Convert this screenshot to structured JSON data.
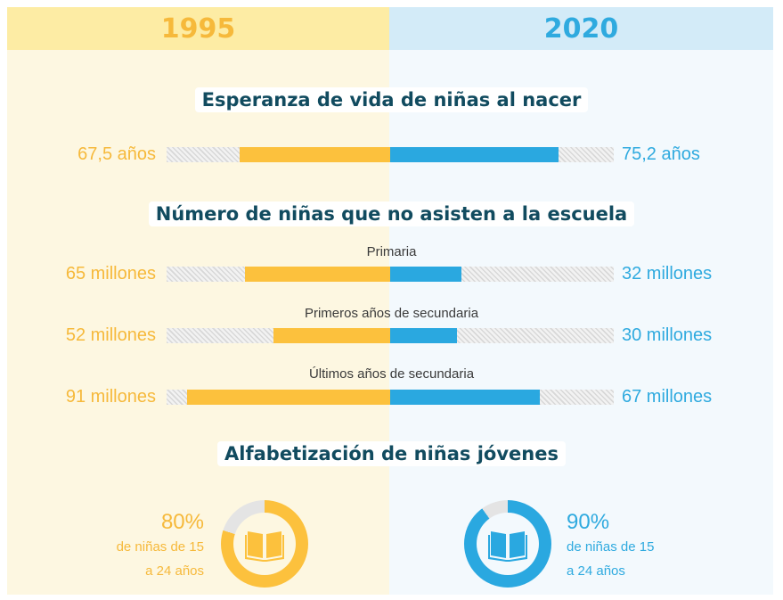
{
  "headers": {
    "left": "1995",
    "right": "2020"
  },
  "colors": {
    "y1995": "#fcc13d",
    "y2020": "#2aa8e0",
    "title": "#114b5f"
  },
  "sections": {
    "life": "Esperanza de vida de niñas al nacer",
    "school": "Número de niñas que no asisten a la escuela",
    "literacy": "Alfabetización de niñas jóvenes"
  },
  "chart_data": {
    "type": "bar",
    "max_scale": 100,
    "rows": [
      {
        "category": "",
        "left_value": 67.5,
        "left_label": "67,5 años",
        "right_value": 75.2,
        "right_label": "75,2 años",
        "section": "life"
      },
      {
        "category": "Primaria",
        "left_value": 65,
        "left_label": "65 millones",
        "right_value": 32,
        "right_label": "32 millones",
        "section": "school"
      },
      {
        "category": "Primeros años de secundaria",
        "left_value": 52,
        "left_label": "52 millones",
        "right_value": 30,
        "right_label": "30 millones",
        "section": "school"
      },
      {
        "category": "Últimos años de secundaria",
        "left_value": 91,
        "left_label": "91 millones",
        "right_value": 67,
        "right_label": "67 millones",
        "section": "school"
      }
    ],
    "literacy": {
      "left": {
        "value": 80,
        "pct": "80%",
        "desc1": "de niñas de 15",
        "desc2": "a 24 años",
        "icon": "open-book-icon"
      },
      "right": {
        "value": 90,
        "pct": "90%",
        "desc1": "de niñas de 15",
        "desc2": "a 24 años",
        "icon": "open-book-icon"
      }
    }
  }
}
